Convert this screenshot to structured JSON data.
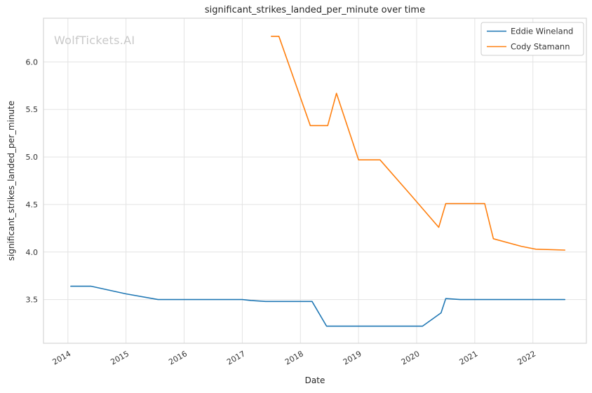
{
  "watermark": "WolfTickets.AI",
  "chart_data": {
    "type": "line",
    "title": "significant_strikes_landed_per_minute over time",
    "xlabel": "Date",
    "ylabel": "significant_strikes_landed_per_minute",
    "xlim": [
      2013.58,
      2022.92
    ],
    "ylim": [
      3.04,
      6.46
    ],
    "x_ticks": [
      2014,
      2015,
      2016,
      2017,
      2018,
      2019,
      2020,
      2021,
      2022
    ],
    "y_ticks": [
      3.5,
      4.0,
      4.5,
      5.0,
      5.5,
      6.0
    ],
    "grid": true,
    "legend_position": "top-right",
    "colors": {
      "grid": "#e3e3e3",
      "border": "#d5d5d5",
      "legend_border": "#cccccc"
    },
    "series": [
      {
        "name": "Eddie Wineland",
        "color": "#1f77b4",
        "points": [
          [
            2014.05,
            3.64
          ],
          [
            2014.4,
            3.64
          ],
          [
            2015.0,
            3.56
          ],
          [
            2015.55,
            3.5
          ],
          [
            2016.3,
            3.5
          ],
          [
            2017.0,
            3.5
          ],
          [
            2017.15,
            3.49
          ],
          [
            2017.4,
            3.48
          ],
          [
            2018.2,
            3.48
          ],
          [
            2018.45,
            3.22
          ],
          [
            2019.0,
            3.22
          ],
          [
            2019.6,
            3.22
          ],
          [
            2020.1,
            3.22
          ],
          [
            2020.42,
            3.36
          ],
          [
            2020.5,
            3.51
          ],
          [
            2020.75,
            3.5
          ],
          [
            2021.4,
            3.5
          ],
          [
            2022.0,
            3.5
          ],
          [
            2022.55,
            3.5
          ]
        ]
      },
      {
        "name": "Cody Stamann",
        "color": "#ff7f0e",
        "points": [
          [
            2017.5,
            6.27
          ],
          [
            2017.63,
            6.27
          ],
          [
            2018.17,
            5.33
          ],
          [
            2018.47,
            5.33
          ],
          [
            2018.62,
            5.67
          ],
          [
            2019.0,
            4.97
          ],
          [
            2019.37,
            4.97
          ],
          [
            2019.9,
            4.6
          ],
          [
            2020.38,
            4.26
          ],
          [
            2020.5,
            4.51
          ],
          [
            2021.17,
            4.51
          ],
          [
            2021.32,
            4.14
          ],
          [
            2021.8,
            4.06
          ],
          [
            2022.05,
            4.03
          ],
          [
            2022.55,
            4.02
          ]
        ]
      }
    ]
  }
}
